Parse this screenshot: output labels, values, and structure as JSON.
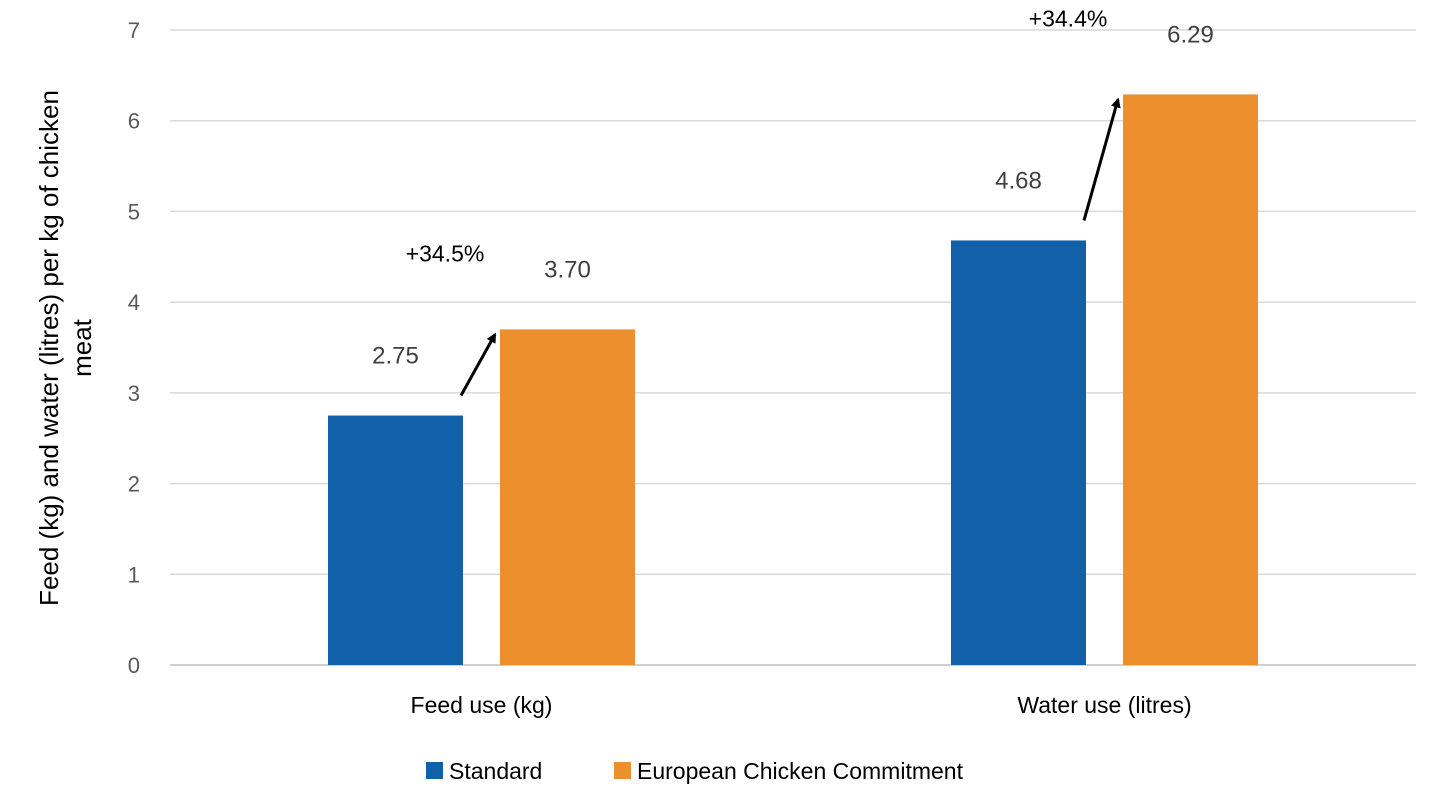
{
  "chart_data": {
    "type": "bar",
    "title": "",
    "xlabel": "",
    "ylabel_lines": [
      "Feed (kg) and water (litres) per kg of chicken",
      "meat"
    ],
    "ylim": [
      0,
      7
    ],
    "yticks": [
      0,
      1,
      2,
      3,
      4,
      5,
      6,
      7
    ],
    "grid": true,
    "categories": [
      "Feed use (kg)",
      "Water use (litres)"
    ],
    "series": [
      {
        "name": "Standard",
        "color": "#1061AA",
        "values": [
          2.75,
          4.68
        ],
        "labels": [
          "2.75",
          "4.68"
        ]
      },
      {
        "name": "European Chicken Commitment",
        "color": "#ED8F2C",
        "values": [
          3.7,
          6.29
        ],
        "labels": [
          "3.70",
          "6.29"
        ]
      }
    ],
    "annotations": [
      "+34.5%",
      "+34.4%"
    ],
    "legend_position": "bottom"
  }
}
